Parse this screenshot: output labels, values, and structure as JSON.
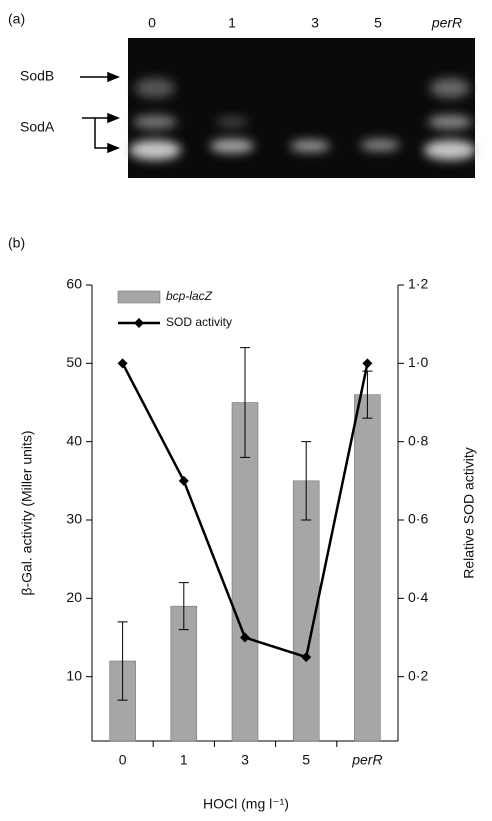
{
  "gel": {
    "panel": "(a)",
    "lanes": [
      "0",
      "1",
      "3",
      "5",
      "perR"
    ],
    "bands": [
      "SodB",
      "SodA"
    ]
  },
  "chart_data": {
    "type": "bar",
    "panel": "(b)",
    "x_label": "HOCl (mg l⁻¹)",
    "y_label": "β-Gal. activity (Miller units)",
    "y2_label": "Relative SOD activity",
    "categories": [
      "0",
      "1",
      "3",
      "5",
      "perR"
    ],
    "series": [
      {
        "name": "bcp-lacZ",
        "color": "#a6a6a6",
        "values": [
          12,
          19,
          45,
          35,
          46
        ],
        "errors": [
          5,
          3,
          7,
          5,
          3
        ]
      },
      {
        "name": "SOD activity",
        "color": "#000000",
        "axis": "y2",
        "type": "line",
        "values": [
          1,
          0.7,
          0.3,
          0.25,
          1
        ]
      }
    ],
    "ylim": [
      0,
      60
    ],
    "yticks": [
      10,
      20,
      30,
      40,
      50,
      60
    ],
    "y2lim": [
      0,
      1.2
    ],
    "y2ticks": [
      {
        "value": 0.2,
        "label": "0·2"
      },
      {
        "value": 0.4,
        "label": "0·4"
      },
      {
        "value": 0.6,
        "label": "0·6"
      },
      {
        "value": 0.8,
        "label": "0·8"
      },
      {
        "value": 1,
        "label": "1·0"
      },
      {
        "value": 1.2,
        "label": "1·2"
      }
    ]
  }
}
